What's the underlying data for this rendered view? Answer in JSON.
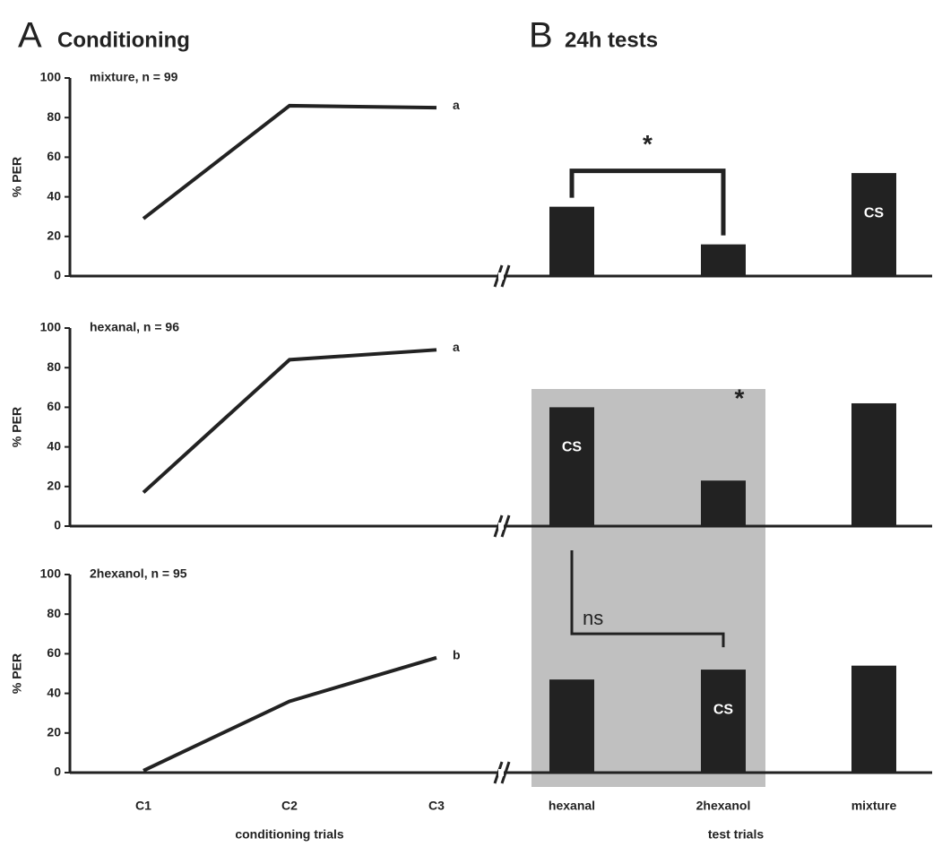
{
  "panel_a": {
    "letter": "A",
    "title": "Conditioning"
  },
  "panel_b": {
    "letter": "B",
    "title": "24h tests"
  },
  "chart_data": [
    {
      "type": "line",
      "title": "mixture, n = 99",
      "y_label": "% PER",
      "categories": [
        null,
        null,
        null
      ],
      "values": [
        29,
        86,
        85
      ],
      "annotation": "a",
      "color": "#222222",
      "ylim": [
        0,
        100
      ],
      "yticks": [
        0,
        20,
        40,
        60,
        80,
        100
      ]
    },
    {
      "type": "bar",
      "categories": [
        null,
        null,
        null
      ],
      "values": [
        35,
        16,
        52
      ],
      "color": "#222222",
      "ylim": [
        0,
        100
      ],
      "annotations": [
        {
          "text": "CS",
          "bar": 2
        }
      ],
      "significance": {
        "text": "*",
        "between": [
          0,
          1
        ],
        "bracket": "heavy"
      }
    },
    {
      "type": "line",
      "title": "hexanal, n = 96",
      "y_label": "% PER",
      "categories": [
        null,
        null,
        null
      ],
      "values": [
        17,
        84,
        89
      ],
      "annotation": "a",
      "color": "#222222",
      "ylim": [
        0,
        100
      ],
      "yticks": [
        0,
        20,
        40,
        60,
        80,
        100
      ]
    },
    {
      "type": "bar",
      "categories": [
        null,
        null,
        null
      ],
      "values": [
        60,
        23,
        62
      ],
      "color": "#222222",
      "ylim": [
        0,
        100
      ],
      "annotations": [
        {
          "text": "CS",
          "bar": 0
        }
      ],
      "significance": {
        "text": "*",
        "between": [
          1
        ],
        "bracket": "none"
      }
    },
    {
      "type": "line",
      "title": "2hexanol, n = 95",
      "y_label": "% PER",
      "x_label": "conditioning trials",
      "categories": [
        "C1",
        "C2",
        "C3"
      ],
      "values": [
        1,
        36,
        58
      ],
      "annotation": "b",
      "color": "#222222",
      "ylim": [
        0,
        100
      ],
      "yticks": [
        0,
        20,
        40,
        60,
        80,
        100
      ]
    },
    {
      "type": "bar",
      "x_label": "test trials",
      "categories": [
        "hexanal",
        "2hexanol",
        "mixture"
      ],
      "values": [
        47,
        52,
        54
      ],
      "color": "#222222",
      "ylim": [
        0,
        100
      ],
      "annotations": [
        {
          "text": "CS",
          "bar": 1
        }
      ],
      "significance": {
        "text": "ns",
        "between": [
          0,
          1
        ],
        "bracket": "light"
      }
    }
  ]
}
